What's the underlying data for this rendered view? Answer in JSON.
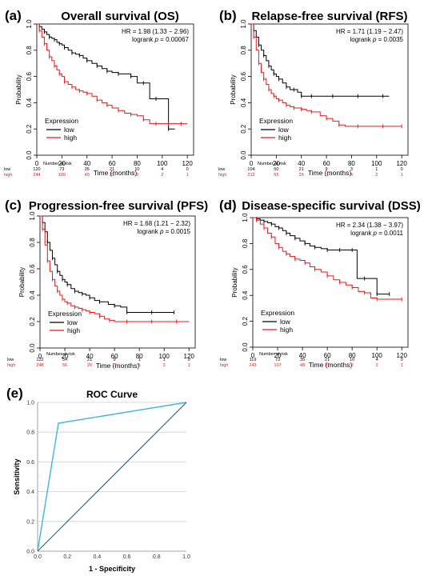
{
  "panels": [
    {
      "letter": "(a)",
      "title": "Overall survival (OS)",
      "hr": "HR = 1.98 (1.33 − 2.96)",
      "logrank": "logrank",
      "p_label": "p",
      "p_value": "= 0.00067",
      "ylabel": "Probability",
      "xlabel": "Time (months)",
      "legend_title": "Expression",
      "nar_title": "Number at risk",
      "series": [
        {
          "name": "low",
          "color": "#000000",
          "risk": [
            "120",
            "73",
            "35",
            "21",
            "10",
            "4",
            "0"
          ]
        },
        {
          "name": "high",
          "color": "#e41a1c",
          "risk": [
            "244",
            "109",
            "49",
            "21",
            "9",
            "2",
            "1"
          ]
        }
      ]
    },
    {
      "letter": "(b)",
      "title": "Relapse-free survival (RFS)",
      "hr": "HR = 1.71 (1.19 − 2.47)",
      "logrank": "logrank",
      "p_label": "p",
      "p_value": "= 0.0035",
      "ylabel": "Probability",
      "xlabel": "Time (months)",
      "legend_title": "Expression",
      "nar_title": "Number at risk",
      "series": [
        {
          "name": "low",
          "color": "#000000",
          "risk": [
            "104",
            "50",
            "21",
            "9",
            "3",
            "1",
            "0"
          ]
        },
        {
          "name": "high",
          "color": "#e41a1c",
          "risk": [
            "212",
            "55",
            "26",
            "11",
            "4",
            "2",
            "1"
          ]
        }
      ]
    },
    {
      "letter": "(c)",
      "title": "Progression-free survival (PFS)",
      "hr": "HR = 1.68 (1.21 − 2.32)",
      "logrank": "logrank",
      "p_label": "p",
      "p_value": "= 0.0015",
      "ylabel": "Probability",
      "xlabel": "Time (months)",
      "legend_title": "Expression",
      "nar_title": "Number at risk",
      "series": [
        {
          "name": "low",
          "color": "#000000",
          "risk": [
            "122",
            "54",
            "21",
            "9",
            "1",
            "1",
            "0"
          ]
        },
        {
          "name": "high",
          "color": "#e41a1c",
          "risk": [
            "248",
            "56",
            "26",
            "11",
            "5",
            "2",
            "1"
          ]
        }
      ]
    },
    {
      "letter": "(d)",
      "title": "Disease-specific survival (DSS)",
      "hr": "HR = 2.34 (1.38 − 3.97)",
      "logrank": "logrank",
      "p_label": "p",
      "p_value": "= 0.0011",
      "ylabel": "Probability",
      "xlabel": "Time (months)",
      "legend_title": "Expression",
      "nar_title": "Number at risk",
      "series": [
        {
          "name": "low",
          "color": "#000000",
          "risk": [
            "119",
            "73",
            "35",
            "21",
            "10",
            "4",
            "0"
          ]
        },
        {
          "name": "high",
          "color": "#e41a1c",
          "risk": [
            "243",
            "107",
            "48",
            "21",
            "9",
            "2",
            "1"
          ]
        }
      ]
    }
  ],
  "roc": {
    "letter": "(e)",
    "title": "ROC Curve",
    "xlabel": "1 - Specificity",
    "ylabel": "Sensitivity",
    "color": "#3db7d9",
    "diag_color": "#1f6f8f"
  },
  "chart_data": [
    {
      "type": "line",
      "title": "Overall survival (OS)",
      "xlabel": "Time (months)",
      "ylabel": "Probability",
      "xlim": [
        0,
        125
      ],
      "ylim": [
        0,
        1
      ],
      "xticks": [
        0,
        20,
        40,
        60,
        80,
        100,
        120
      ],
      "yticks": [
        0.0,
        0.2,
        0.4,
        0.6,
        0.8,
        1.0
      ],
      "series": [
        {
          "name": "low",
          "x": [
            0,
            2,
            4,
            6,
            8,
            10,
            12,
            14,
            16,
            18,
            20,
            22,
            25,
            28,
            31,
            34,
            37,
            40,
            44,
            48,
            52,
            56,
            60,
            65,
            70,
            75,
            80,
            85,
            90,
            95,
            100,
            105,
            110
          ],
          "y": [
            1.0,
            0.98,
            0.96,
            0.94,
            0.92,
            0.9,
            0.89,
            0.88,
            0.86,
            0.85,
            0.84,
            0.82,
            0.8,
            0.78,
            0.77,
            0.76,
            0.74,
            0.72,
            0.7,
            0.68,
            0.66,
            0.64,
            0.63,
            0.62,
            0.62,
            0.6,
            0.55,
            0.55,
            0.43,
            0.43,
            0.43,
            0.2,
            0.2
          ]
        },
        {
          "name": "high",
          "x": [
            0,
            2,
            4,
            6,
            8,
            10,
            12,
            14,
            16,
            18,
            20,
            22,
            25,
            28,
            31,
            34,
            37,
            40,
            44,
            48,
            52,
            56,
            60,
            65,
            70,
            75,
            80,
            85,
            90,
            95,
            100,
            105,
            110,
            115,
            120
          ],
          "y": [
            1.0,
            0.95,
            0.9,
            0.85,
            0.8,
            0.75,
            0.72,
            0.68,
            0.65,
            0.62,
            0.6,
            0.56,
            0.54,
            0.52,
            0.5,
            0.49,
            0.48,
            0.47,
            0.45,
            0.42,
            0.4,
            0.38,
            0.36,
            0.34,
            0.32,
            0.31,
            0.3,
            0.27,
            0.24,
            0.24,
            0.24,
            0.24,
            0.24,
            0.24,
            0.24
          ]
        }
      ]
    },
    {
      "type": "line",
      "title": "Relapse-free survival (RFS)",
      "xlabel": "Time (months)",
      "ylabel": "Probability",
      "xlim": [
        0,
        125
      ],
      "ylim": [
        0,
        1
      ],
      "xticks": [
        0,
        20,
        40,
        60,
        80,
        100,
        120
      ],
      "yticks": [
        0.0,
        0.2,
        0.4,
        0.6,
        0.8,
        1.0
      ],
      "series": [
        {
          "name": "low",
          "x": [
            0,
            2,
            4,
            6,
            8,
            10,
            12,
            14,
            16,
            18,
            20,
            22,
            25,
            28,
            31,
            34,
            37,
            40,
            44,
            48,
            55,
            65,
            75,
            85,
            95,
            105,
            110
          ],
          "y": [
            1.0,
            0.95,
            0.9,
            0.84,
            0.8,
            0.76,
            0.72,
            0.68,
            0.65,
            0.62,
            0.6,
            0.58,
            0.55,
            0.52,
            0.5,
            0.5,
            0.48,
            0.45,
            0.45,
            0.45,
            0.45,
            0.45,
            0.45,
            0.45,
            0.45,
            0.45,
            0.45
          ]
        },
        {
          "name": "high",
          "x": [
            0,
            2,
            4,
            6,
            8,
            10,
            12,
            14,
            16,
            18,
            20,
            22,
            25,
            28,
            31,
            34,
            37,
            40,
            44,
            48,
            55,
            60,
            65,
            70,
            75,
            85,
            95,
            105,
            115,
            120
          ],
          "y": [
            1.0,
            0.9,
            0.8,
            0.7,
            0.63,
            0.58,
            0.54,
            0.5,
            0.47,
            0.45,
            0.43,
            0.42,
            0.4,
            0.38,
            0.37,
            0.36,
            0.36,
            0.35,
            0.34,
            0.33,
            0.3,
            0.28,
            0.26,
            0.23,
            0.22,
            0.22,
            0.22,
            0.22,
            0.22,
            0.22
          ]
        }
      ]
    },
    {
      "type": "line",
      "title": "Progression-free survival (PFS)",
      "xlabel": "Time (months)",
      "ylabel": "Probability",
      "xlim": [
        0,
        125
      ],
      "ylim": [
        0,
        1
      ],
      "xticks": [
        0,
        20,
        40,
        60,
        80,
        100,
        120
      ],
      "yticks": [
        0.0,
        0.2,
        0.4,
        0.6,
        0.8,
        1.0
      ],
      "series": [
        {
          "name": "low",
          "x": [
            0,
            2,
            4,
            6,
            8,
            10,
            12,
            14,
            16,
            18,
            20,
            22,
            25,
            28,
            31,
            34,
            37,
            40,
            44,
            48,
            55,
            60,
            65,
            70,
            80,
            90,
            100,
            108
          ],
          "y": [
            1.0,
            0.95,
            0.88,
            0.8,
            0.74,
            0.68,
            0.63,
            0.58,
            0.55,
            0.52,
            0.5,
            0.48,
            0.45,
            0.43,
            0.42,
            0.41,
            0.4,
            0.38,
            0.36,
            0.35,
            0.33,
            0.32,
            0.31,
            0.27,
            0.27,
            0.27,
            0.27,
            0.27
          ]
        },
        {
          "name": "high",
          "x": [
            0,
            2,
            4,
            6,
            8,
            10,
            12,
            14,
            16,
            18,
            20,
            22,
            25,
            28,
            31,
            34,
            37,
            40,
            44,
            48,
            52,
            56,
            60,
            70,
            80,
            90,
            100,
            110,
            120
          ],
          "y": [
            1.0,
            0.9,
            0.78,
            0.66,
            0.58,
            0.52,
            0.47,
            0.43,
            0.4,
            0.37,
            0.35,
            0.34,
            0.32,
            0.31,
            0.3,
            0.29,
            0.28,
            0.27,
            0.26,
            0.24,
            0.22,
            0.21,
            0.2,
            0.2,
            0.2,
            0.2,
            0.2,
            0.2,
            0.2
          ]
        }
      ]
    },
    {
      "type": "line",
      "title": "Disease-specific survival (DSS)",
      "xlabel": "Time (months)",
      "ylabel": "Probability",
      "xlim": [
        0,
        125
      ],
      "ylim": [
        0,
        1
      ],
      "xticks": [
        0,
        20,
        40,
        60,
        80,
        100,
        120
      ],
      "yticks": [
        0.0,
        0.2,
        0.4,
        0.6,
        0.8,
        1.0
      ],
      "series": [
        {
          "name": "low",
          "x": [
            0,
            3,
            6,
            9,
            12,
            15,
            18,
            21,
            24,
            27,
            30,
            34,
            38,
            42,
            46,
            50,
            55,
            60,
            65,
            70,
            75,
            80,
            84,
            90,
            95,
            100,
            105,
            110
          ],
          "y": [
            1.0,
            0.99,
            0.98,
            0.97,
            0.96,
            0.95,
            0.93,
            0.92,
            0.9,
            0.88,
            0.86,
            0.84,
            0.82,
            0.8,
            0.78,
            0.77,
            0.76,
            0.75,
            0.75,
            0.75,
            0.75,
            0.75,
            0.53,
            0.53,
            0.53,
            0.41,
            0.41,
            0.41
          ]
        },
        {
          "name": "high",
          "x": [
            0,
            3,
            6,
            9,
            12,
            15,
            18,
            21,
            24,
            27,
            30,
            34,
            38,
            42,
            46,
            50,
            55,
            60,
            65,
            70,
            75,
            80,
            85,
            90,
            95,
            100,
            110,
            120
          ],
          "y": [
            1.0,
            0.98,
            0.95,
            0.92,
            0.88,
            0.85,
            0.8,
            0.77,
            0.74,
            0.72,
            0.7,
            0.68,
            0.67,
            0.65,
            0.62,
            0.6,
            0.58,
            0.55,
            0.52,
            0.5,
            0.48,
            0.46,
            0.43,
            0.42,
            0.38,
            0.37,
            0.37,
            0.37
          ]
        }
      ]
    },
    {
      "type": "line",
      "title": "ROC Curve",
      "xlabel": "1 - Specificity",
      "ylabel": "Sensitivity",
      "xlim": [
        0,
        1
      ],
      "ylim": [
        0,
        1
      ],
      "xticks": [
        0.0,
        0.2,
        0.4,
        0.6,
        0.8,
        1.0
      ],
      "yticks": [
        0.0,
        0.2,
        0.4,
        0.6,
        0.8,
        1.0
      ],
      "grid": "horizontal",
      "series": [
        {
          "x": [
            0.0,
            0.14,
            1.0
          ],
          "y": [
            0.0,
            0.86,
            1.0
          ]
        },
        {
          "x": [
            0.0,
            1.0
          ],
          "y": [
            0.0,
            1.0
          ]
        }
      ]
    }
  ]
}
